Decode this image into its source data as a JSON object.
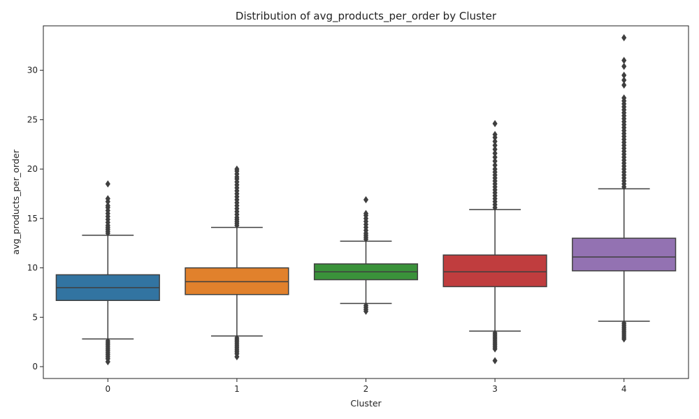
{
  "chart_data": {
    "type": "box",
    "title": "Distribution of avg_products_per_order by Cluster",
    "xlabel": "Cluster",
    "ylabel": "avg_products_per_order",
    "ylim": [
      -1.2,
      34.5
    ],
    "yticks": [
      0,
      5,
      10,
      15,
      20,
      25,
      30
    ],
    "categories": [
      "0",
      "1",
      "2",
      "3",
      "4"
    ],
    "boxes": [
      {
        "category": "0",
        "color": "#3274a1",
        "whisker_low": 2.8,
        "q1": 6.7,
        "median": 8.0,
        "q3": 9.3,
        "whisker_high": 13.3,
        "outliers_low": [
          2.6,
          2.4,
          2.2,
          2.0,
          1.8,
          1.6,
          1.4,
          1.2,
          1.0,
          0.8,
          0.5
        ],
        "outliers_high": [
          13.5,
          13.7,
          13.9,
          14.1,
          14.3,
          14.6,
          14.9,
          15.2,
          15.5,
          15.8,
          16.1,
          16.3,
          16.7,
          17.0,
          18.5
        ]
      },
      {
        "category": "1",
        "color": "#e1812c",
        "whisker_low": 3.1,
        "q1": 7.3,
        "median": 8.6,
        "q3": 10.0,
        "whisker_high": 14.1,
        "outliers_low": [
          2.9,
          2.7,
          2.5,
          2.3,
          2.1,
          1.9,
          1.7,
          1.5,
          1.3,
          1.0
        ],
        "outliers_high": [
          14.3,
          14.5,
          14.7,
          14.9,
          15.1,
          15.4,
          15.7,
          16.0,
          16.3,
          16.6,
          16.9,
          17.2,
          17.5,
          17.8,
          18.1,
          18.4,
          18.7,
          19.0,
          19.2,
          19.5,
          19.8,
          20.0
        ]
      },
      {
        "category": "2",
        "color": "#3a923a",
        "whisker_low": 6.4,
        "q1": 8.8,
        "median": 9.6,
        "q3": 10.4,
        "whisker_high": 12.7,
        "outliers_low": [
          6.2,
          6.0,
          5.8,
          5.6
        ],
        "outliers_high": [
          12.9,
          13.1,
          13.3,
          13.5,
          13.8,
          14.1,
          14.4,
          14.7,
          15.0,
          15.3,
          15.5,
          16.9
        ]
      },
      {
        "category": "3",
        "color": "#c03d3e",
        "whisker_low": 3.6,
        "q1": 8.1,
        "median": 9.6,
        "q3": 11.3,
        "whisker_high": 15.9,
        "outliers_low": [
          3.4,
          3.2,
          3.0,
          2.8,
          2.6,
          2.4,
          2.2,
          2.0,
          1.8,
          0.6
        ],
        "outliers_high": [
          16.1,
          16.4,
          16.7,
          17.0,
          17.3,
          17.6,
          17.9,
          18.2,
          18.5,
          18.8,
          19.1,
          19.4,
          19.7,
          20.0,
          20.4,
          20.8,
          21.2,
          21.6,
          22.0,
          22.4,
          22.8,
          23.2,
          23.5,
          24.6
        ]
      },
      {
        "category": "4",
        "color": "#9372b2",
        "whisker_low": 4.6,
        "q1": 9.7,
        "median": 11.1,
        "q3": 13.0,
        "whisker_high": 18.0,
        "outliers_low": [
          4.4,
          4.2,
          4.0,
          3.8,
          3.6,
          3.4,
          3.2,
          3.0,
          2.8
        ],
        "outliers_high": [
          18.2,
          18.5,
          18.8,
          19.1,
          19.4,
          19.7,
          20.0,
          20.3,
          20.6,
          20.9,
          21.2,
          21.5,
          21.8,
          22.1,
          22.4,
          22.7,
          23.0,
          23.3,
          23.6,
          23.9,
          24.2,
          24.5,
          24.8,
          25.1,
          25.4,
          25.7,
          26.0,
          26.3,
          26.6,
          26.9,
          27.2,
          28.5,
          29.0,
          29.5,
          30.4,
          31.0,
          33.3
        ]
      }
    ],
    "grid": false,
    "legend": "none"
  }
}
